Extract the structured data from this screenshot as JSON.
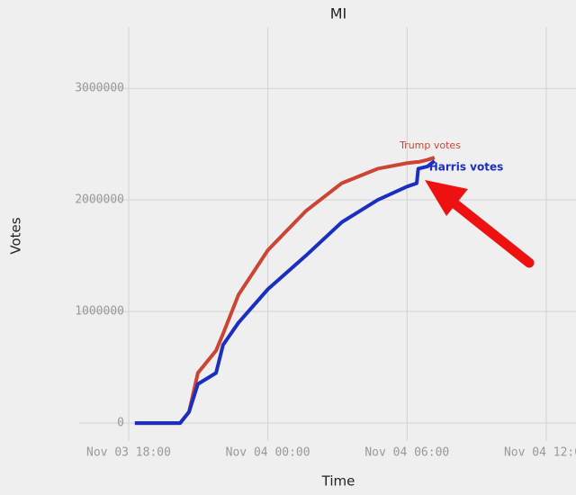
{
  "chart_data": {
    "type": "line",
    "title": "MI",
    "x_label": "Time",
    "y_label": "Votes",
    "x": [
      "Nov 03 18:16",
      "Nov 03 20:13",
      "Nov 03 20:36",
      "Nov 03 20:59",
      "Nov 03 21:46",
      "Nov 03 22:04",
      "Nov 03 22:44",
      "Nov 04 00:00",
      "Nov 04 01:38",
      "Nov 04 03:11",
      "Nov 04 04:44",
      "Nov 04 06:00",
      "Nov 04 06:25",
      "Nov 04 06:29",
      "Nov 04 06:53",
      "Nov 04 07:11"
    ],
    "series": [
      {
        "name": "Trump votes",
        "color": "#cc4433",
        "values": [
          0,
          0,
          100000,
          450000,
          650000,
          800000,
          1150000,
          1550000,
          1900000,
          2150000,
          2280000,
          2330000,
          2340000,
          2340000,
          2360000,
          2380000
        ]
      },
      {
        "name": "Harris votes",
        "color": "#1a2fc0",
        "values": [
          0,
          0,
          100000,
          350000,
          450000,
          700000,
          900000,
          1200000,
          1500000,
          1800000,
          2000000,
          2120000,
          2150000,
          2280000,
          2300000,
          2350000
        ]
      }
    ],
    "xlim": [
      "Nov 03 15:52",
      "Nov 04 13:17"
    ],
    "xticks": [
      "Nov 03 18:00",
      "Nov 04 00:00",
      "Nov 04 06:00",
      "Nov 04 12:00"
    ],
    "ylim": [
      -160000,
      3550000
    ],
    "yticks": [
      0,
      1000000,
      2000000,
      3000000
    ],
    "grid": true
  }
}
